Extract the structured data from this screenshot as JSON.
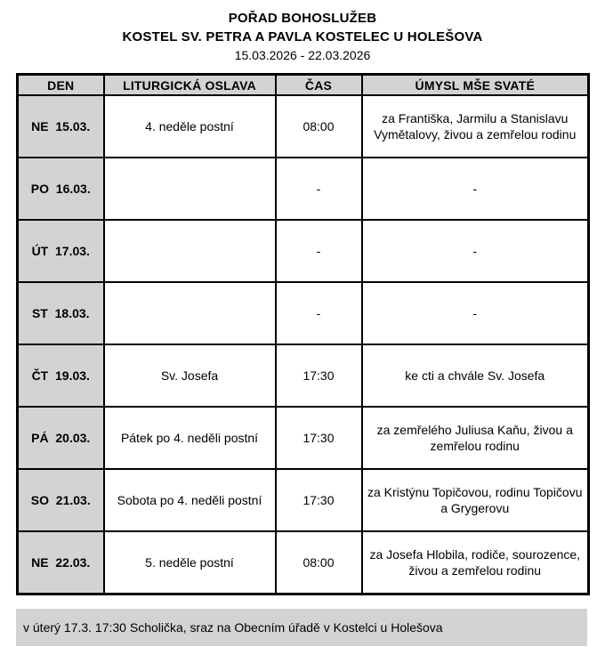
{
  "header": {
    "title": "POŘAD BOHOSLUŽEB",
    "subtitle": "KOSTEL SV. PETRA A PAVLA KOSTELEC U HOLEŠOVA",
    "date_range": "15.03.2026 - 22.03.2026"
  },
  "table": {
    "columns": [
      "DEN",
      "LITURGICKÁ OSLAVA",
      "ČAS",
      "ÚMYSL MŠE SVATÉ"
    ],
    "rows": [
      {
        "den": "NE  15.03.",
        "oslava": "4. neděle postní",
        "cas": "08:00",
        "umysl": "za Františka, Jarmilu a Stanislavu Vymětalovy, živou a zemřelou rodinu"
      },
      {
        "den": "PO  16.03.",
        "oslava": "",
        "cas": "-",
        "umysl": "-"
      },
      {
        "den": "ÚT  17.03.",
        "oslava": "",
        "cas": "-",
        "umysl": "-"
      },
      {
        "den": "ST  18.03.",
        "oslava": "",
        "cas": "-",
        "umysl": "-"
      },
      {
        "den": "ČT  19.03.",
        "oslava": "Sv. Josefa",
        "cas": "17:30",
        "umysl": "ke cti a chvále Sv. Josefa"
      },
      {
        "den": "PÁ  20.03.",
        "oslava": "Pátek po 4. neděli postní",
        "cas": "17:30",
        "umysl": "za zemřelého Juliusa Kaňu, živou a zemřelou rodinu"
      },
      {
        "den": "SO  21.03.",
        "oslava": "Sobota po 4. neděli postní",
        "cas": "17:30",
        "umysl": "za Kristýnu Topičovou, rodinu Topičovu a Grygerovu"
      },
      {
        "den": "NE  22.03.",
        "oslava": "5. neděle postní",
        "cas": "08:00",
        "umysl": "za Josefa Hlobila, rodiče, sourozence, živou a zemřelou rodinu"
      }
    ]
  },
  "footer": {
    "note": "v úterý 17.3. 17:30 Scholička, sraz na Obecním úřadě v Kostelci u Holešova"
  },
  "colors": {
    "cell_gray": "#d3d3d3",
    "border": "#000000",
    "background": "#ffffff"
  }
}
